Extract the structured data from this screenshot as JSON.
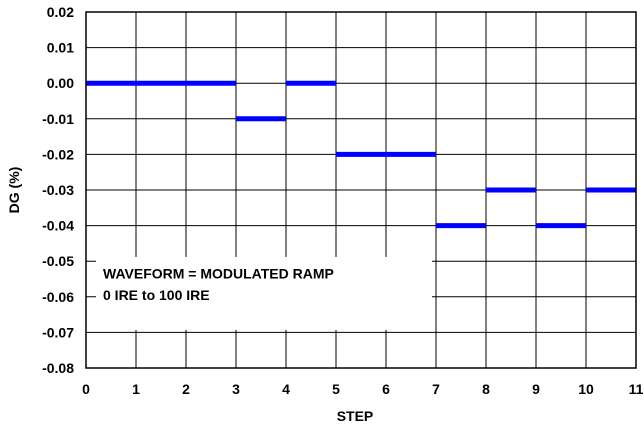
{
  "chart_data": {
    "type": "line",
    "xlabel": "STEP",
    "ylabel": "DG (%)",
    "xlim": [
      0,
      11
    ],
    "ylim": [
      -0.08,
      0.02
    ],
    "grid": true,
    "x_ticks": [
      "0",
      "1",
      "2",
      "3",
      "4",
      "5",
      "6",
      "7",
      "8",
      "9",
      "10",
      "11"
    ],
    "y_ticks": [
      "0.02",
      "0.01",
      "0.00",
      "-0.01",
      "-0.02",
      "-0.03",
      "-0.04",
      "-0.05",
      "-0.06",
      "-0.07",
      "-0.08"
    ],
    "series": [
      {
        "color": "#0000ff",
        "step_segments": [
          {
            "x0": 0,
            "x1": 3,
            "y": 0.0
          },
          {
            "x0": 3,
            "x1": 4,
            "y": -0.01
          },
          {
            "x0": 4,
            "x1": 5,
            "y": 0.0
          },
          {
            "x0": 5,
            "x1": 7,
            "y": -0.02
          },
          {
            "x0": 7,
            "x1": 8,
            "y": -0.04
          },
          {
            "x0": 8,
            "x1": 9,
            "y": -0.03
          },
          {
            "x0": 9,
            "x1": 10,
            "y": -0.04
          },
          {
            "x0": 10,
            "x1": 11,
            "y": -0.03
          }
        ]
      }
    ],
    "annotation": {
      "line1": "WAVEFORM = MODULATED RAMP",
      "line2": "0 IRE to 100 IRE"
    }
  }
}
